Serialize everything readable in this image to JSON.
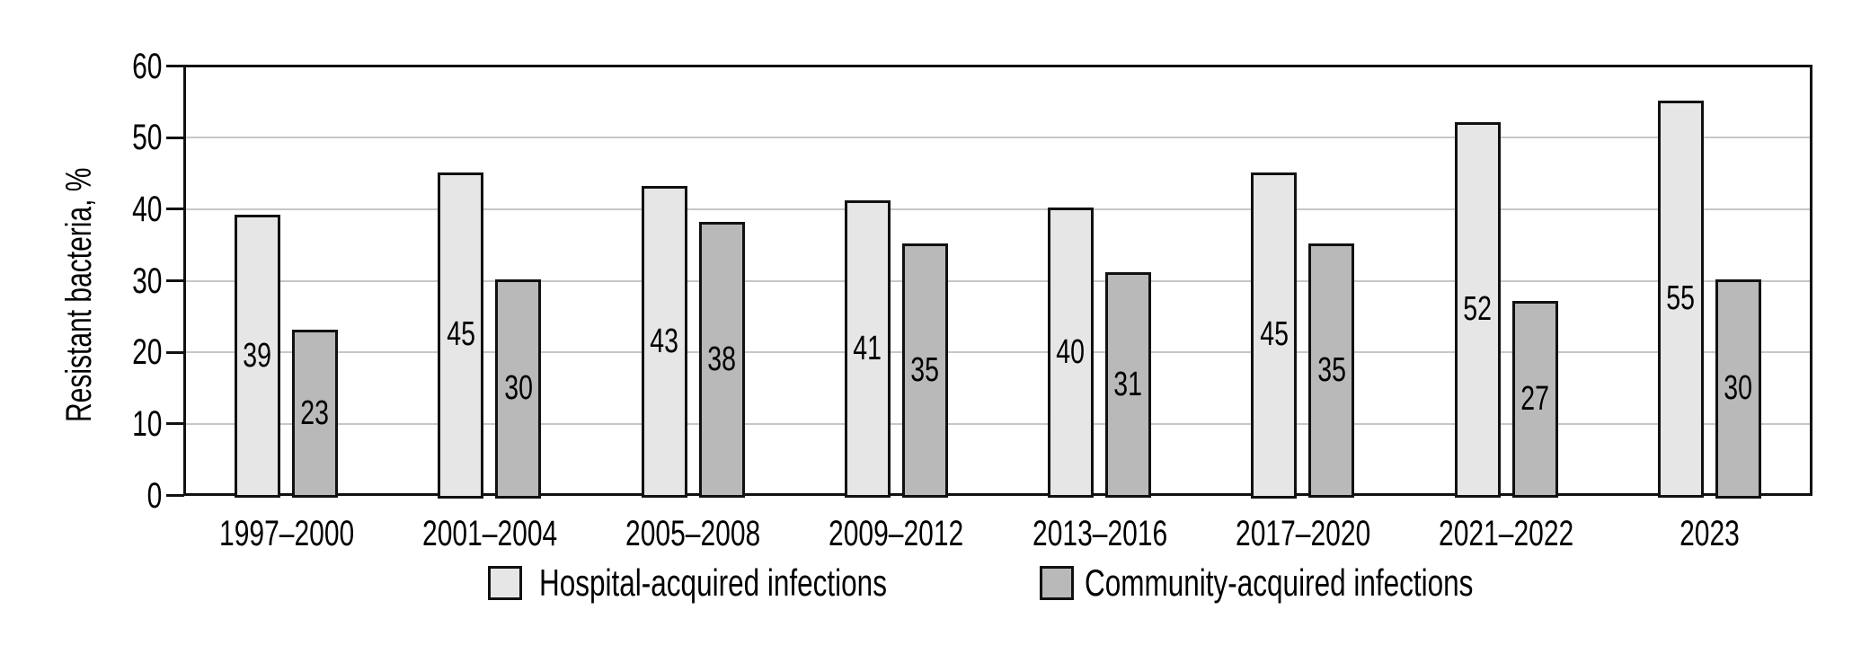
{
  "chart_data": {
    "type": "bar",
    "title": "",
    "ylabel": "Resistant bacteria, %",
    "xlabel": "",
    "categories": [
      "1997–2000",
      "2001–2004",
      "2005–2008",
      "2009–2012",
      "2013–2016",
      "2017–2020",
      "2021–2022",
      "2023"
    ],
    "series": [
      {
        "name": "Hospital-acquired infections",
        "color": "#e6e6e6",
        "values": [
          39,
          45,
          43,
          41,
          40,
          45,
          52,
          55
        ]
      },
      {
        "name": "Community-acquired infections",
        "color": "#b9b9b9",
        "values": [
          23,
          30,
          38,
          35,
          31,
          35,
          27,
          30
        ]
      }
    ],
    "ylim": [
      0,
      60
    ],
    "yticks": [
      0,
      10,
      20,
      30,
      40,
      50,
      60
    ],
    "grid": "horizontal-light-gray",
    "plot_border": "full-black-frame",
    "bar_value_labels": "centered-inside-bars",
    "legend_position": "bottom"
  }
}
